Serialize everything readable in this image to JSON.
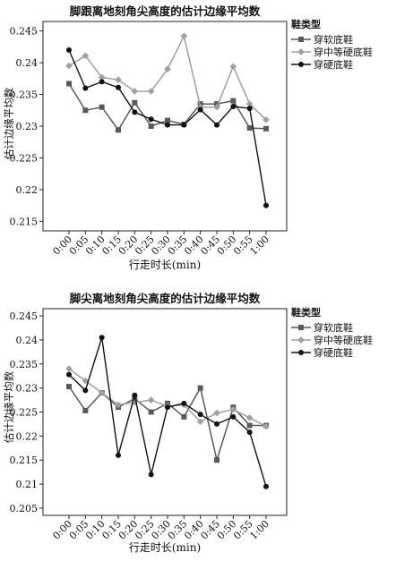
{
  "chart_data": [
    {
      "type": "line",
      "title": "脚跟离地刻角尖高度的估计边缘平均数",
      "xlabel": "行走时长(min)",
      "ylabel": "估计边缘平均数",
      "legend_title": "鞋类型",
      "legend_position": "right",
      "grid": false,
      "categories": [
        "0:00",
        "0:05",
        "0:10",
        "0:15",
        "0:20",
        "0:25",
        "0:30",
        "0:35",
        "0:40",
        "0:45",
        "0:50",
        "0:55",
        "1:00"
      ],
      "yticks": [
        "0.215",
        "0.22",
        "0.225",
        "0.23",
        "0.235",
        "0.24",
        "0.245"
      ],
      "ylim": [
        0.2135,
        0.2465
      ],
      "series": [
        {
          "name": "穿软底鞋",
          "color": "#5a5a5a",
          "marker": "square",
          "values": [
            0.2367,
            0.2325,
            0.233,
            0.2294,
            0.2337,
            0.23,
            0.2309,
            0.2303,
            0.2335,
            0.2335,
            0.234,
            0.2297,
            0.2296
          ]
        },
        {
          "name": "穿中等硬底鞋",
          "color": "#a0a0a0",
          "marker": "diamond",
          "values": [
            0.2395,
            0.2411,
            0.2377,
            0.2373,
            0.2355,
            0.2355,
            0.239,
            0.2442,
            0.233,
            0.233,
            0.2394,
            0.2335,
            0.231
          ]
        },
        {
          "name": "穿硬底鞋",
          "color": "#111111",
          "marker": "circle",
          "values": [
            0.242,
            0.236,
            0.237,
            0.2361,
            0.2322,
            0.2311,
            0.2302,
            0.2302,
            0.2326,
            0.2302,
            0.2331,
            0.2328,
            0.2175
          ]
        }
      ]
    },
    {
      "type": "line",
      "title": "脚尖离地刻角尖高度的估计边缘平均数",
      "xlabel": "行走时长(min)",
      "ylabel": "估计边缘平均数",
      "legend_title": "鞋类型",
      "legend_position": "right",
      "grid": false,
      "categories": [
        "0:00",
        "0:05",
        "0:10",
        "0:15",
        "0:20",
        "0:25",
        "0:30",
        "0:35",
        "0:40",
        "0:45",
        "0:50",
        "0:55",
        "1:00"
      ],
      "yticks": [
        "0.205",
        "0.21",
        "0.215",
        "0.22",
        "0.225",
        "0.23",
        "0.235",
        "0.24",
        "0.245"
      ],
      "ylim": [
        0.2035,
        0.2465
      ],
      "series": [
        {
          "name": "穿软底鞋",
          "color": "#5a5a5a",
          "marker": "square",
          "values": [
            0.2303,
            0.2253,
            0.229,
            0.226,
            0.2278,
            0.225,
            0.2268,
            0.224,
            0.23,
            0.215,
            0.226,
            0.2222,
            0.2222
          ]
        },
        {
          "name": "穿中等硬底鞋",
          "color": "#a0a0a0",
          "marker": "diamond",
          "values": [
            0.234,
            0.2315,
            0.229,
            0.2265,
            0.227,
            0.2275,
            0.2262,
            0.2265,
            0.223,
            0.2248,
            0.2255,
            0.2238,
            0.222
          ]
        },
        {
          "name": "穿硬底鞋",
          "color": "#111111",
          "marker": "circle",
          "values": [
            0.2328,
            0.2295,
            0.2405,
            0.216,
            0.2285,
            0.212,
            0.226,
            0.2268,
            0.2245,
            0.2225,
            0.224,
            0.2208,
            0.2095
          ]
        }
      ]
    }
  ]
}
